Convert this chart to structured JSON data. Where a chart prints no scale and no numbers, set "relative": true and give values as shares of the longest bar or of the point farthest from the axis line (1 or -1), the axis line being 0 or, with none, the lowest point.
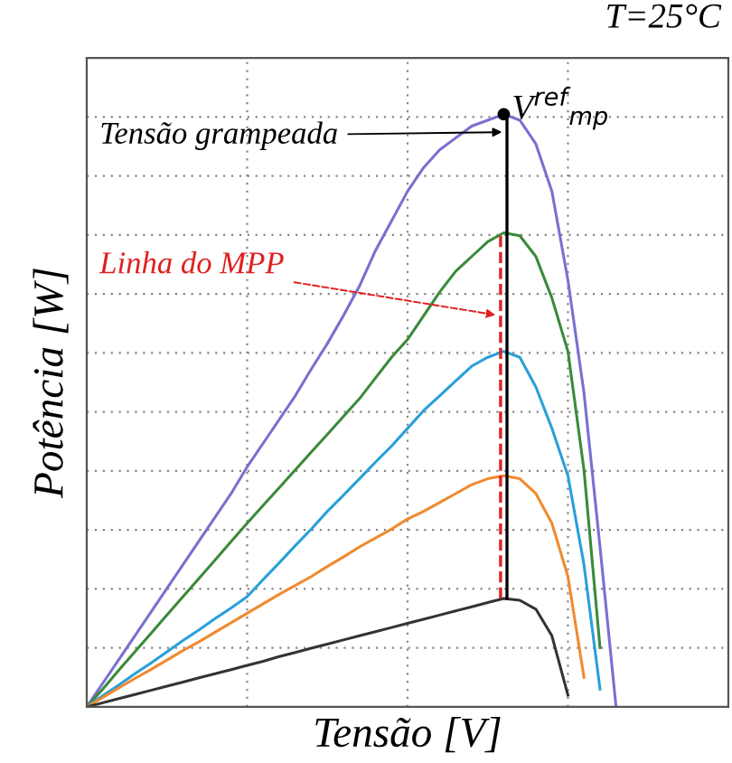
{
  "chart_data": {
    "type": "line",
    "relative": true,
    "xlabel": "Tensão [V]",
    "ylabel": "Potência [W]",
    "categories": [
      null,
      null,
      null,
      null,
      null,
      null,
      null,
      null,
      null,
      null,
      null,
      null,
      null,
      null,
      null,
      null,
      null,
      null,
      null,
      null,
      null,
      null,
      null,
      null,
      null,
      null,
      null,
      null,
      null,
      null,
      null,
      null,
      null,
      null,
      null,
      null,
      null,
      null,
      null,
      null,
      null
    ],
    "series": [
      {
        "color": "#7b6fd0",
        "values": [
          0,
          0.04,
          0.08,
          0.12,
          0.16,
          0.2,
          0.24,
          0.28,
          0.32,
          0.36,
          0.405,
          0.445,
          0.485,
          0.525,
          0.57,
          0.613,
          0.66,
          0.71,
          0.77,
          0.82,
          0.87,
          0.91,
          0.94,
          0.96,
          0.98,
          0.99,
          1.0,
          0.99,
          0.95,
          0.87,
          0.72,
          0.53,
          0.27,
          0,
          null,
          null,
          null,
          null,
          null,
          null,
          null
        ]
      },
      {
        "color": "#3a8a3a",
        "values": [
          0,
          0.03,
          0.062,
          0.093,
          0.124,
          0.155,
          0.186,
          0.217,
          0.248,
          0.279,
          0.31,
          0.34,
          0.37,
          0.4,
          0.43,
          0.46,
          0.49,
          0.52,
          0.555,
          0.59,
          0.62,
          0.66,
          0.7,
          0.735,
          0.76,
          0.785,
          0.8,
          0.795,
          0.76,
          0.69,
          0.6,
          0.4,
          0.1,
          null,
          null,
          null,
          null,
          null,
          null,
          null,
          null
        ]
      },
      {
        "color": "#2aa0d8",
        "values": [
          0,
          0.019,
          0.037,
          0.056,
          0.074,
          0.093,
          0.112,
          0.13,
          0.149,
          0.167,
          0.186,
          0.215,
          0.243,
          0.272,
          0.3,
          0.33,
          0.357,
          0.385,
          0.413,
          0.44,
          0.47,
          0.5,
          0.525,
          0.55,
          0.575,
          0.59,
          0.6,
          0.59,
          0.54,
          0.47,
          0.39,
          0.24,
          0.03,
          null,
          null,
          null,
          null,
          null,
          null,
          null,
          null
        ]
      },
      {
        "color": "#f08a30",
        "values": [
          0,
          0.016,
          0.032,
          0.048,
          0.063,
          0.079,
          0.095,
          0.11,
          0.126,
          0.142,
          0.158,
          0.174,
          0.19,
          0.205,
          0.22,
          0.237,
          0.253,
          0.27,
          0.285,
          0.3,
          0.317,
          0.33,
          0.345,
          0.36,
          0.375,
          0.385,
          0.39,
          0.385,
          0.36,
          0.31,
          0.22,
          0.05,
          null,
          null,
          null,
          null,
          null,
          null,
          null,
          null,
          null
        ]
      },
      {
        "color": "#333333",
        "values": [
          0,
          0.007,
          0.014,
          0.021,
          0.028,
          0.035,
          0.042,
          0.049,
          0.056,
          0.063,
          0.07,
          0.077,
          0.085,
          0.092,
          0.099,
          0.106,
          0.113,
          0.12,
          0.127,
          0.134,
          0.141,
          0.148,
          0.155,
          0.162,
          0.169,
          0.176,
          0.183,
          0.18,
          0.165,
          0.12,
          0.02,
          null,
          null,
          null,
          null,
          null,
          null,
          null,
          null,
          null,
          null
        ]
      }
    ],
    "annotations": [
      "T=25°C",
      "V$^{ref}$$_{mp}$",
      "Tensão grampeada",
      "Linha do MPP"
    ],
    "grid": true,
    "tick_labels": false,
    "marker": "none",
    "line_style": "solid",
    "legend": false
  }
}
